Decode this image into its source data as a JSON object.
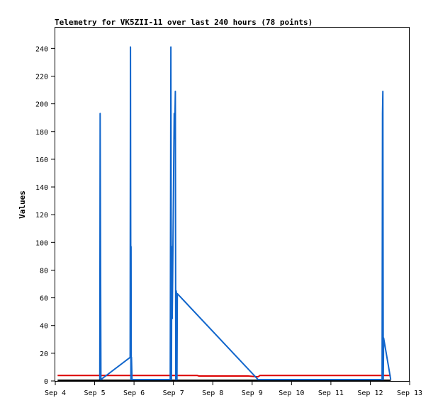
{
  "chart_data": {
    "type": "line",
    "title": "Telemetry for VK5ZII-11 over last 240 hours (78 points)",
    "xlabel": "",
    "ylabel": "Values",
    "xlim": [
      0,
      9
    ],
    "ylim": [
      0,
      255
    ],
    "x_ticks": [
      {
        "value": 0,
        "label": "Sep 4"
      },
      {
        "value": 1,
        "label": "Sep 5"
      },
      {
        "value": 2,
        "label": "Sep 6"
      },
      {
        "value": 3,
        "label": "Sep 7"
      },
      {
        "value": 4,
        "label": "Sep 8"
      },
      {
        "value": 5,
        "label": "Sep 9"
      },
      {
        "value": 6,
        "label": "Sep 10"
      },
      {
        "value": 7,
        "label": "Sep 11"
      },
      {
        "value": 8,
        "label": "Sep 12"
      },
      {
        "value": 9,
        "label": "Sep 13"
      }
    ],
    "y_ticks": [
      0,
      20,
      40,
      60,
      80,
      100,
      120,
      140,
      160,
      180,
      200,
      220,
      240
    ],
    "grid": false,
    "legend": "none",
    "series": [
      {
        "color": "#000000",
        "x": [
          0.06,
          8.52
        ],
        "y": [
          0.5,
          0.5
        ]
      },
      {
        "color": "#dd0000",
        "x": [
          0.06,
          3.6,
          3.65,
          4.9,
          5.15,
          5.2,
          8.52
        ],
        "y": [
          4,
          4,
          3.6,
          3.6,
          3,
          4,
          4
        ]
      },
      {
        "color": "#1166cc",
        "x": [
          1.13,
          1.14,
          1.16,
          1.9,
          1.91,
          1.92,
          1.925,
          1.93,
          1.935,
          1.95,
          2.92,
          2.935,
          2.95,
          2.96,
          2.97,
          2.98,
          2.99,
          3.0,
          3.01,
          3.02,
          3.03,
          3.04,
          3.05,
          3.06,
          3.07,
          3.08,
          3.09,
          3.1,
          5.15,
          8.3,
          8.31,
          8.32,
          8.33,
          8.34,
          8.52
        ],
        "y": [
          1,
          193,
          1,
          17,
          241,
          1,
          97,
          1,
          17,
          1,
          1,
          241,
          1,
          97,
          45,
          73,
          101,
          133,
          163,
          193,
          175,
          193,
          209,
          1,
          65,
          63,
          1,
          63,
          1,
          1,
          193,
          209,
          1,
          31,
          1
        ]
      }
    ]
  }
}
